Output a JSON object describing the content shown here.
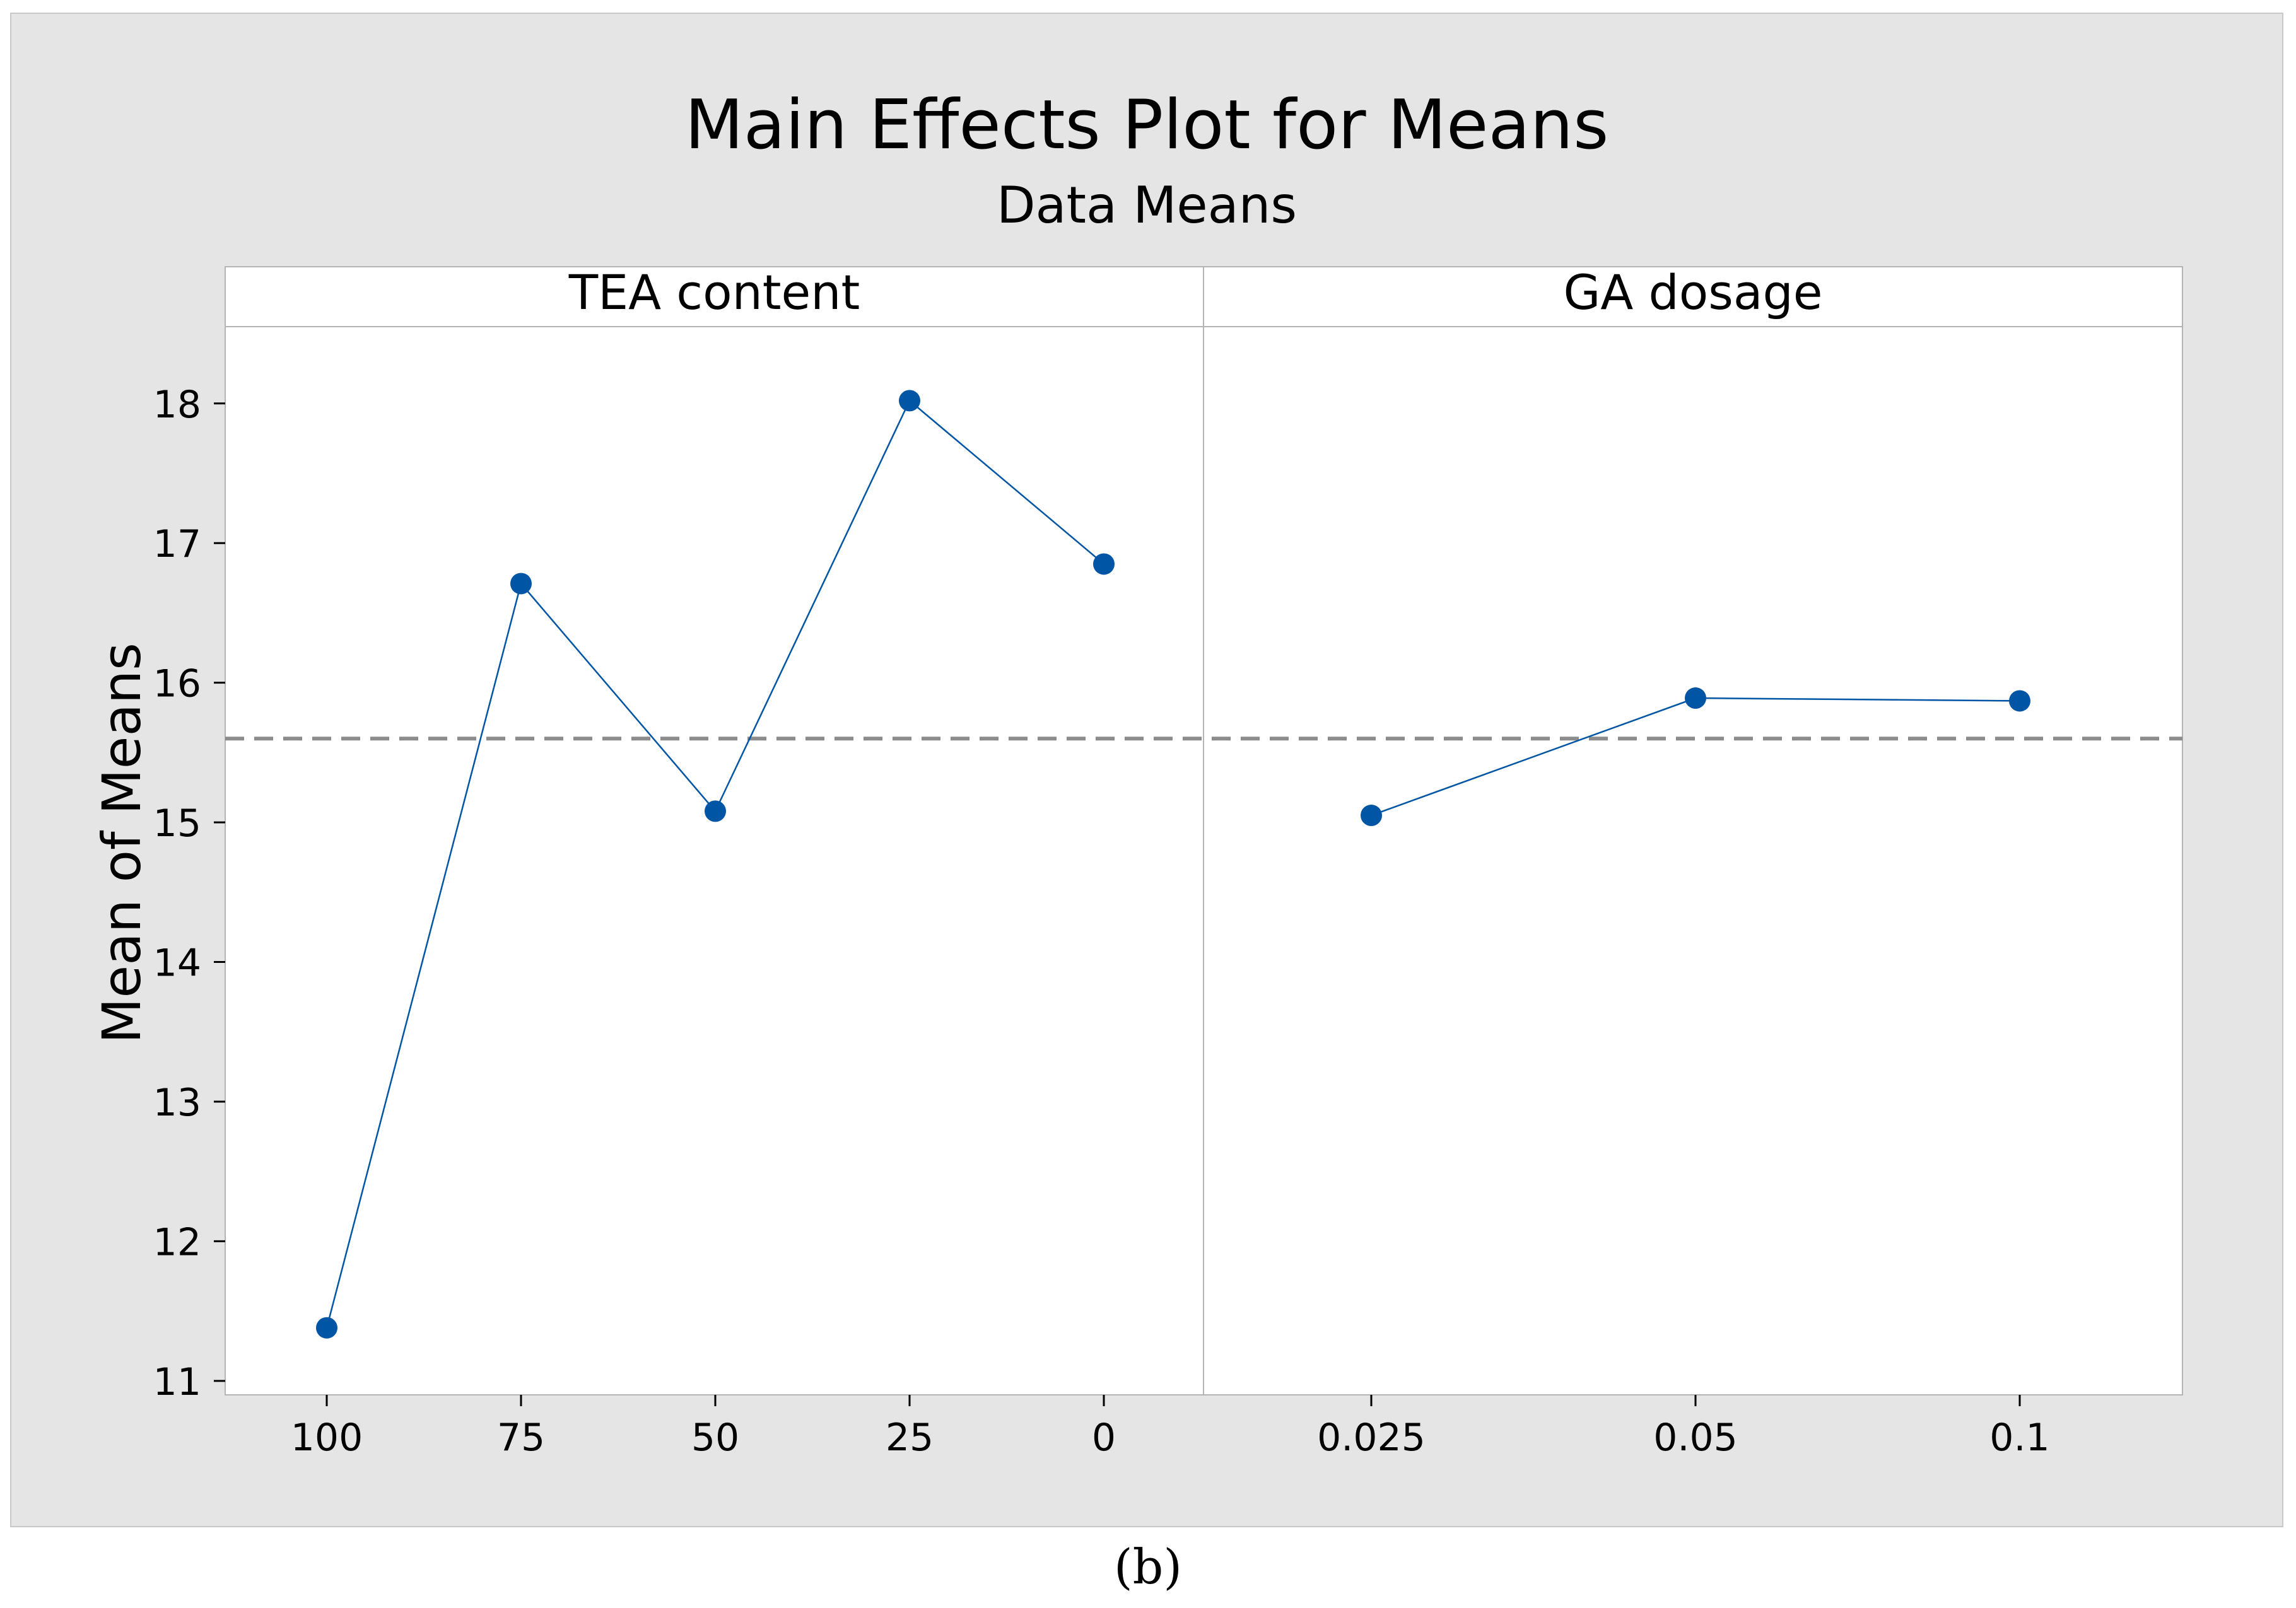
{
  "chart_data": {
    "type": "line",
    "title": "Main Effects Plot for Means",
    "subtitle": "Data Means",
    "ylabel": "Mean of Means",
    "ylim": [
      10.9,
      18.55
    ],
    "yticks": [
      11,
      12,
      13,
      14,
      15,
      16,
      17,
      18
    ],
    "grand_mean": 15.6,
    "grid": false,
    "colors": {
      "series": "#0055a4",
      "reference_line": "#8c8c8c",
      "background": "#e5e5e5",
      "panel": "#ffffff"
    },
    "panels": [
      {
        "factor": "TEA content",
        "categories": [
          "100",
          "75",
          "50",
          "25",
          "0"
        ],
        "values": [
          11.38,
          16.71,
          15.08,
          18.02,
          16.85
        ]
      },
      {
        "factor": "GA dosage",
        "categories": [
          "0.025",
          "0.05",
          "0.1"
        ],
        "values": [
          15.05,
          15.89,
          15.87
        ]
      }
    ]
  },
  "caption": "(b)"
}
